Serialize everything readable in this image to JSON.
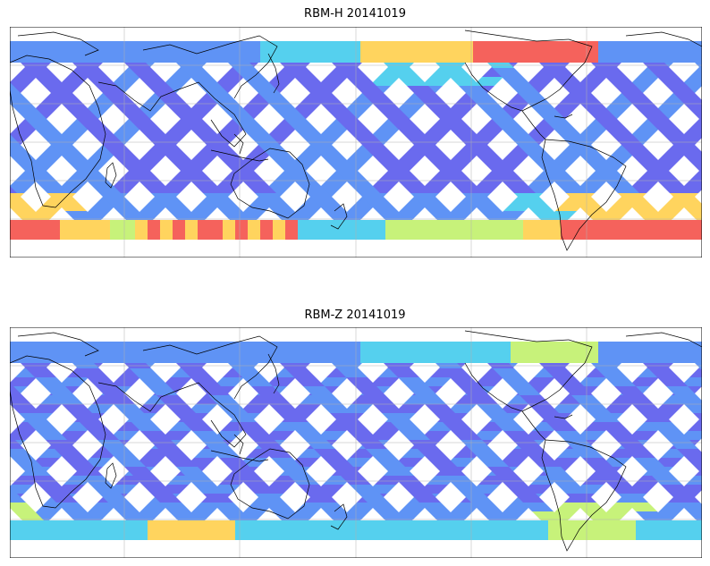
{
  "panels": [
    {
      "title": "RBM-H 20141019"
    },
    {
      "title": "RBM-Z 20141019"
    }
  ],
  "map": {
    "projection": "cylindrical",
    "coastlines": true,
    "grid": true,
    "frame_color": "#000000",
    "grid_color": "#b0b0b0",
    "swath_pattern": "diagonal satellite orbit swaths between latitude bands",
    "colormap": "jet",
    "colors": {
      "low": "#6a6aee",
      "low_mid": "#5f93f5",
      "mid": "#55d0ee",
      "mid_high": "#c7f27a",
      "high": "#ffd45e",
      "very_high": "#f5625c"
    }
  }
}
